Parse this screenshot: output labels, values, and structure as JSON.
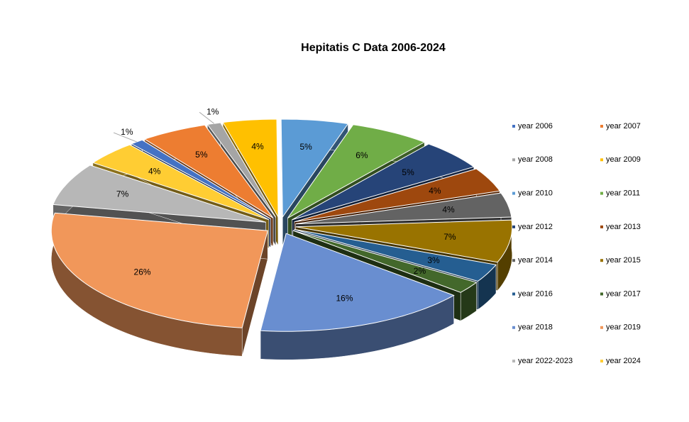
{
  "chart_data": {
    "type": "pie",
    "title": "Hepitatis C Data 2006-2024",
    "categories": [
      "year 2006",
      "year 2007",
      "year  2008",
      "year 2009",
      "year 2010",
      "year 2011",
      "year 2012",
      "year 2013",
      "year 2014",
      "year 2015",
      "year 2016",
      "year 2017",
      "year 2018",
      "year 2019",
      "year 2022-2023",
      "year 2024"
    ],
    "values": [
      1,
      5,
      1,
      4,
      5,
      6,
      5,
      4,
      4,
      7,
      3,
      2,
      16,
      26,
      7,
      4
    ],
    "value_labels": [
      "1%",
      "5%",
      "1%",
      "4%",
      "5%",
      "6%",
      "5%",
      "4%",
      "4%",
      "7%",
      "3%",
      "2%",
      "16%",
      "26%",
      "7%",
      "4%"
    ],
    "colors": [
      "#4472c4",
      "#ed7d31",
      "#a5a5a5",
      "#ffc000",
      "#5b9bd5",
      "#70ad47",
      "#264478",
      "#9e480e",
      "#636363",
      "#997300",
      "#255e91",
      "#43682b",
      "#698ed0",
      "#f1975a",
      "#b7b7b7",
      "#ffcd33"
    ],
    "legend": "right"
  }
}
